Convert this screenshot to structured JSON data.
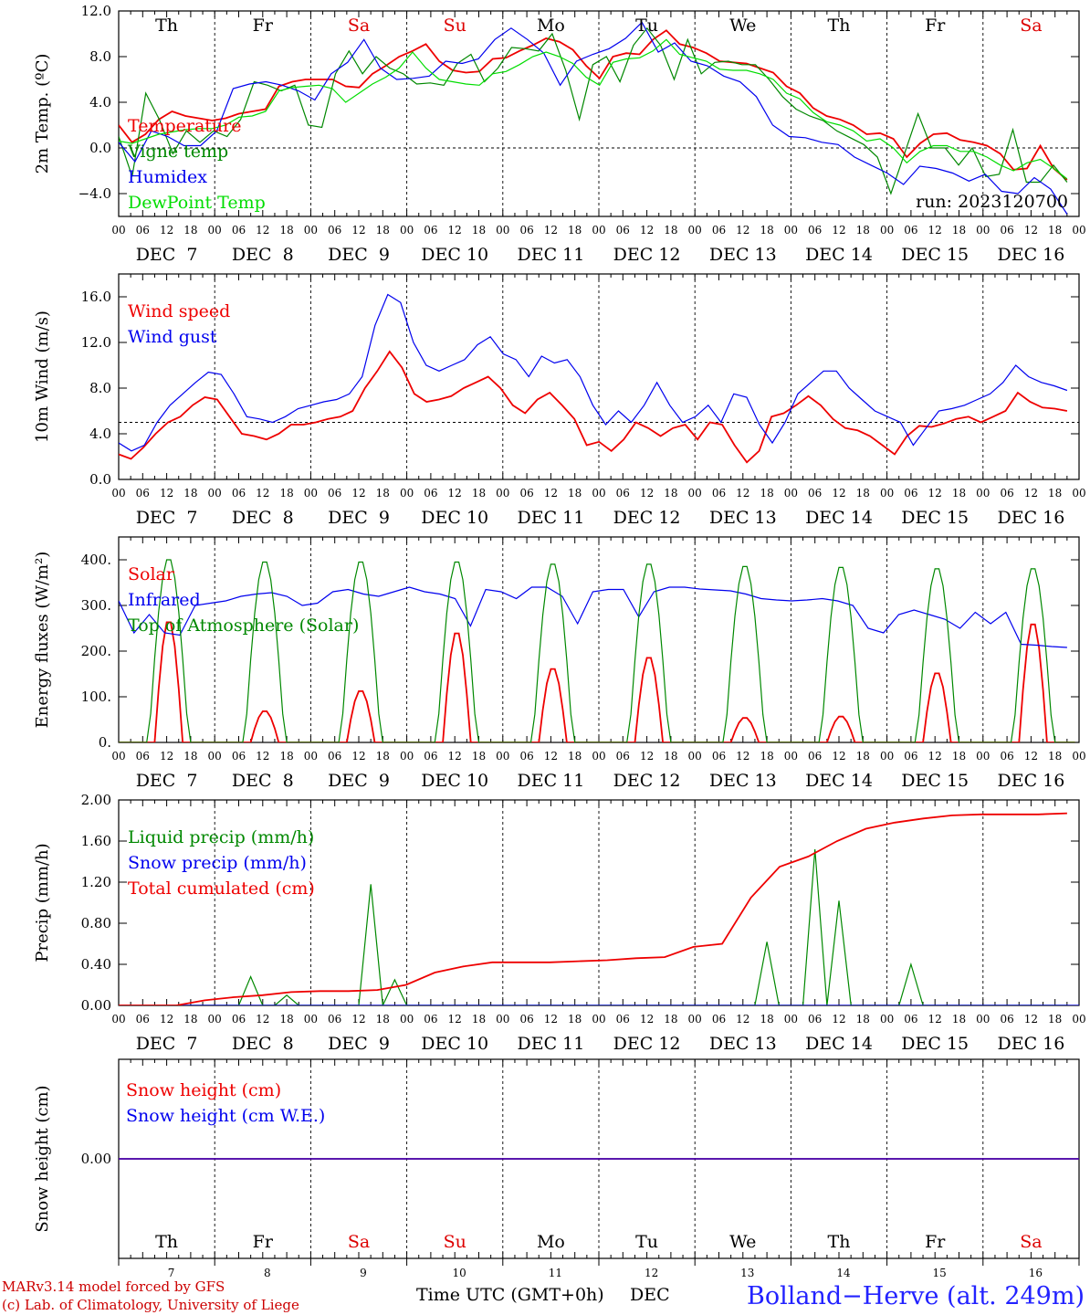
{
  "hour_ticks": [
    "00",
    "06",
    "12",
    "18"
  ],
  "dates": [
    "DEC  7",
    "DEC  8",
    "DEC  9",
    "DEC 10",
    "DEC 11",
    "DEC 12",
    "DEC 13",
    "DEC 14",
    "DEC 15",
    "DEC 16"
  ],
  "weekdays": [
    {
      "label": "Th",
      "color": "#000000"
    },
    {
      "label": "Fr",
      "color": "#000000"
    },
    {
      "label": "Sa",
      "color": "#dd0000"
    },
    {
      "label": "Su",
      "color": "#dd0000"
    },
    {
      "label": "Mo",
      "color": "#000000"
    },
    {
      "label": "Tu",
      "color": "#000000"
    },
    {
      "label": "We",
      "color": "#000000"
    },
    {
      "label": "Th",
      "color": "#000000"
    },
    {
      "label": "Fr",
      "color": "#000000"
    },
    {
      "label": "Sa",
      "color": "#dd0000"
    }
  ],
  "day_numbers": [
    "7",
    "8",
    "9",
    "10",
    "11",
    "12",
    "13",
    "14",
    "15",
    "16"
  ],
  "footer": {
    "model": "MARv3.14 model forced by GFS",
    "lab": "(c) Lab. of Climatology, University of Liege",
    "xlabel": "Time UTC (GMT+0h)",
    "month": "DEC",
    "station": "Bolland−Herve (alt. 249m)"
  },
  "colors": {
    "red": "#ee0000",
    "green": "#008800",
    "blue": "#0000ee",
    "lightgreen": "#00dd00",
    "purple": "#800080"
  },
  "chart_data": [
    {
      "type": "line",
      "ylabel": "2m Temp. (ºC)",
      "ylim": [
        -6,
        12
      ],
      "yticks": [
        "12.0",
        "8.0",
        "4.0",
        "0.0",
        "−4.0"
      ],
      "ytick_values": [
        12,
        8,
        4,
        0,
        -4
      ],
      "ref_line": 0,
      "annotation": "run: 2023120700",
      "x_hours_from_dec7_00": "every 3 hours, 0 to 237",
      "series": [
        {
          "name": "Temperature",
          "color": "red",
          "values": [
            2.0,
            0.5,
            1.2,
            2.5,
            3.2,
            2.8,
            2.6,
            2.4,
            2.6,
            3.0,
            3.2,
            3.4,
            5.4,
            5.8,
            6.0,
            6.0,
            6.0,
            5.4,
            5.3,
            6.5,
            7.2,
            8.0,
            8.5,
            9.1,
            7.6,
            6.8,
            6.6,
            6.7,
            7.8,
            7.9,
            8.5,
            9.0,
            9.6,
            9.3,
            8.6,
            7.2,
            6.1,
            8.0,
            8.3,
            8.2,
            9.5,
            10.3,
            9.1,
            8.8,
            8.3,
            7.6,
            7.5,
            7.4,
            7.0,
            6.6,
            5.4,
            4.8,
            3.5,
            2.8,
            2.5,
            2.0,
            1.2,
            1.3,
            0.8,
            -0.8,
            0.4,
            1.2,
            1.3,
            0.7,
            0.5,
            0.2,
            -0.5,
            -1.9,
            -1.8,
            0.2,
            -1.8,
            -2.8
          ],
          "max_note": "approx"
        },
        {
          "name": "Vigne temp",
          "color": "green",
          "values": [
            1.0,
            -2.5,
            4.8,
            2.5,
            -0.5,
            1.5,
            0.5,
            1.5,
            1.0,
            2.5,
            5.8,
            5.5,
            5.0,
            5.5,
            2.0,
            1.8,
            6.5,
            8.5,
            6.5,
            8.0,
            7.0,
            6.5,
            5.6,
            5.7,
            5.5,
            7.4,
            8.2,
            5.8,
            7.0,
            8.8,
            8.7,
            8.5,
            10.0,
            6.8,
            2.5,
            7.3,
            8.0,
            5.8,
            9.0,
            10.5,
            9.0,
            6.0,
            9.5,
            6.5,
            7.5,
            7.6,
            7.3,
            7.3,
            6.0,
            4.5,
            3.4,
            2.8,
            2.4,
            1.5,
            0.9,
            0.3,
            -0.8,
            -4.0,
            -0.5,
            3.0,
            0.0,
            0.0,
            -1.5,
            0.0,
            -2.5,
            -2.3,
            1.6,
            -3.0,
            -3.0,
            -1.5,
            -3.0
          ]
        },
        {
          "name": "Humidex",
          "color": "blue",
          "values": [
            0.5,
            -1.2,
            1.5,
            1.0,
            0.2,
            0.2,
            1.5,
            5.2,
            5.6,
            5.8,
            5.5,
            5.0,
            4.2,
            6.5,
            7.5,
            9.5,
            7.0,
            6.0,
            6.1,
            6.3,
            7.6,
            7.4,
            7.8,
            9.5,
            10.5,
            9.5,
            8.3,
            5.5,
            7.6,
            8.2,
            8.7,
            9.6,
            11.0,
            8.4,
            9.2,
            7.6,
            7.2,
            6.3,
            5.8,
            4.5,
            2.0,
            1.0,
            0.9,
            0.5,
            0.3,
            -0.8,
            -1.5,
            -2.2,
            -3.2,
            -1.6,
            -1.8,
            -2.2,
            -2.9,
            -2.3,
            -3.8,
            -4.0,
            -2.6,
            -3.6,
            -5.8
          ]
        },
        {
          "name": "DewPoint Temp",
          "color": "lightgreen",
          "values": [
            0.6,
            0.4,
            0.8,
            1.2,
            1.4,
            1.6,
            1.7,
            1.7,
            2.0,
            2.7,
            2.8,
            3.2,
            5.0,
            5.3,
            5.4,
            5.5,
            5.2,
            4.0,
            4.8,
            5.6,
            6.2,
            7.0,
            8.4,
            7.0,
            6.0,
            5.8,
            5.6,
            5.5,
            6.5,
            6.7,
            7.3,
            8.0,
            8.4,
            8.0,
            7.4,
            6.2,
            5.5,
            7.5,
            7.8,
            7.9,
            8.5,
            9.5,
            8.2,
            7.9,
            7.6,
            6.9,
            6.8,
            6.8,
            6.5,
            6.0,
            4.8,
            4.3,
            3.1,
            2.3,
            2.0,
            1.5,
            0.6,
            0.8,
            0.0,
            -1.3,
            -0.3,
            0.2,
            0.2,
            -0.3,
            -0.3,
            -0.8,
            -1.5,
            -2.0,
            -1.3,
            -1.0,
            -1.8,
            -2.7
          ]
        }
      ]
    },
    {
      "type": "line",
      "ylabel": "10m Wind (m/s)",
      "ylim": [
        0,
        18
      ],
      "yticks": [
        "16.0",
        "12.0",
        "8.0",
        "4.0",
        "0.0"
      ],
      "ytick_values": [
        16,
        12,
        8,
        4,
        0
      ],
      "ref_line": 5,
      "series": [
        {
          "name": "Wind speed",
          "color": "red",
          "values": [
            2.2,
            1.8,
            2.8,
            4.0,
            5.0,
            5.5,
            6.5,
            7.2,
            7.0,
            5.5,
            4.0,
            3.8,
            3.5,
            4.0,
            4.8,
            4.8,
            5.0,
            5.3,
            5.5,
            6.0,
            8.0,
            9.5,
            11.2,
            9.8,
            7.5,
            6.8,
            7.0,
            7.3,
            8.0,
            8.5,
            9.0,
            8.0,
            6.5,
            5.8,
            7.0,
            7.6,
            6.5,
            5.3,
            3.0,
            3.3,
            2.5,
            3.5,
            5.0,
            4.5,
            3.8,
            4.5,
            4.8,
            3.5,
            5.0,
            4.8,
            3.0,
            1.5,
            2.5,
            5.5,
            5.8,
            6.5,
            7.3,
            6.5,
            5.3,
            4.5,
            4.3,
            3.8,
            3.0,
            2.2,
            3.8,
            4.7,
            4.6,
            4.9,
            5.3,
            5.5,
            5.0,
            5.5,
            6.0,
            7.6,
            6.8,
            6.3,
            6.2,
            6.0
          ]
        },
        {
          "name": "Wind gust",
          "color": "blue",
          "values": [
            3.2,
            2.5,
            3.0,
            5.0,
            6.5,
            7.5,
            8.5,
            9.4,
            9.2,
            7.5,
            5.5,
            5.3,
            5.0,
            5.5,
            6.2,
            6.5,
            6.8,
            7.0,
            7.5,
            9.0,
            13.5,
            16.2,
            15.5,
            12.0,
            10.0,
            9.5,
            10.0,
            10.5,
            11.8,
            12.5,
            11.0,
            10.5,
            9.0,
            10.8,
            10.2,
            10.5,
            9.0,
            6.5,
            4.8,
            6.0,
            5.0,
            6.5,
            8.5,
            6.5,
            5.0,
            5.5,
            6.5,
            5.0,
            7.5,
            7.2,
            4.8,
            3.2,
            5.0,
            7.5,
            8.5,
            9.5,
            9.5,
            8.0,
            7.0,
            6.0,
            5.5,
            5.0,
            3.0,
            4.5,
            6.0,
            6.2,
            6.5,
            7.0,
            7.5,
            8.5,
            10.0,
            9.0,
            8.5,
            8.2,
            7.8
          ]
        }
      ]
    },
    {
      "type": "line",
      "ylabel": "Energy fluxes (W/m²)",
      "ylim": [
        0,
        450
      ],
      "yticks": [
        "400.",
        "300.",
        "200.",
        "100.",
        "0."
      ],
      "ytick_values": [
        400,
        300,
        200,
        100,
        0
      ],
      "series": [
        {
          "name": "Solar",
          "color": "red",
          "peaks": [
            270,
            70,
            115,
            245,
            165,
            190,
            55,
            58,
            155,
            265
          ]
        },
        {
          "name": "Infrared",
          "color": "blue",
          "values": [
            310,
            240,
            280,
            240,
            235,
            300,
            305,
            310,
            320,
            325,
            328,
            320,
            300,
            305,
            330,
            335,
            325,
            320,
            330,
            340,
            330,
            325,
            315,
            255,
            335,
            330,
            315,
            340,
            340,
            320,
            260,
            330,
            335,
            335,
            275,
            330,
            340,
            340,
            336,
            334,
            332,
            325,
            315,
            312,
            310,
            312,
            315,
            310,
            300,
            250,
            240,
            280,
            290,
            280,
            270,
            250,
            285,
            260,
            285,
            215,
            213,
            210,
            208
          ]
        },
        {
          "name": "Top of Atmosphere (Solar)",
          "color": "green",
          "peaks": [
            405,
            400,
            400,
            400,
            395,
            395,
            390,
            388,
            385,
            385
          ]
        }
      ]
    },
    {
      "type": "line",
      "ylabel": "Precip (mm/h)",
      "ylim": [
        0,
        2
      ],
      "yticks": [
        "2.00",
        "1.60",
        "1.20",
        "0.80",
        "0.40",
        "0.00"
      ],
      "ytick_values": [
        2.0,
        1.6,
        1.2,
        0.8,
        0.4,
        0.0
      ],
      "series": [
        {
          "name": "Liquid precip (mm/h)",
          "color": "green",
          "notable": [
            [
              33,
              0.28
            ],
            [
              42,
              0.1
            ],
            [
              63,
              1.18
            ],
            [
              69,
              0.25
            ],
            [
              162,
              0.62
            ],
            [
              174,
              1.52
            ],
            [
              180,
              1.02
            ],
            [
              198,
              0.4
            ]
          ]
        },
        {
          "name": "Snow precip (mm/h)",
          "color": "blue",
          "values": [
            0
          ]
        },
        {
          "name": "Total cumulated (cm)",
          "color": "red",
          "values": [
            0,
            0,
            0,
            0.05,
            0.08,
            0.1,
            0.13,
            0.14,
            0.14,
            0.15,
            0.2,
            0.32,
            0.38,
            0.42,
            0.42,
            0.42,
            0.43,
            0.44,
            0.46,
            0.47,
            0.57,
            0.6,
            1.05,
            1.35,
            1.45,
            1.6,
            1.72,
            1.78,
            1.82,
            1.85,
            1.86,
            1.86,
            1.86,
            1.87
          ]
        }
      ]
    },
    {
      "type": "line",
      "ylabel": "Snow height (cm)",
      "ylim": [
        -1,
        1
      ],
      "yticks": [
        "0.00"
      ],
      "ytick_values": [
        0
      ],
      "series": [
        {
          "name": "Snow height (cm)",
          "color": "red",
          "values": [
            0
          ]
        },
        {
          "name": "Snow height (cm W.E.)",
          "color": "blue",
          "values": [
            0
          ]
        }
      ]
    }
  ]
}
